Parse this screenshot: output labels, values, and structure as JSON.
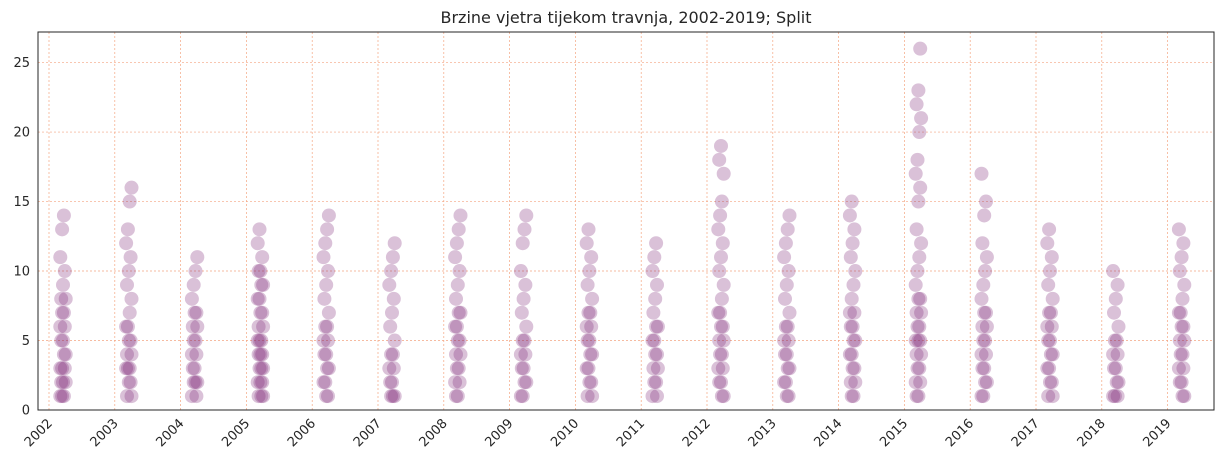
{
  "chart_data": {
    "type": "scatter",
    "title": "Brzine vjetra tijekom travnja, 2002-2019; Split",
    "xlabel": "",
    "ylabel": "",
    "categories": [
      "2002",
      "2003",
      "2004",
      "2005",
      "2006",
      "2007",
      "2008",
      "2009",
      "2010",
      "2011",
      "2012",
      "2013",
      "2014",
      "2015",
      "2016",
      "2017",
      "2018",
      "2019"
    ],
    "yticks": [
      0,
      5,
      10,
      15,
      20,
      25
    ],
    "ylim": [
      0,
      27.2
    ],
    "grid": true,
    "marker_color": "#7b2173",
    "grid_color": "#f4a582",
    "years": [
      {
        "year": "2002",
        "values": [
          1,
          1,
          1,
          2,
          2,
          2,
          3,
          3,
          3,
          4,
          4,
          5,
          5,
          6,
          6,
          7,
          7,
          8,
          8,
          9,
          10,
          11,
          13,
          14
        ]
      },
      {
        "year": "2003",
        "values": [
          1,
          1,
          2,
          2,
          3,
          3,
          3,
          4,
          4,
          5,
          5,
          6,
          6,
          7,
          8,
          9,
          10,
          11,
          12,
          13,
          15,
          16
        ]
      },
      {
        "year": "2004",
        "values": [
          1,
          1,
          2,
          2,
          2,
          3,
          3,
          4,
          4,
          5,
          5,
          6,
          6,
          7,
          7,
          8,
          9,
          10,
          11
        ]
      },
      {
        "year": "2005",
        "values": [
          1,
          1,
          1,
          2,
          2,
          2,
          3,
          3,
          3,
          4,
          4,
          4,
          5,
          5,
          5,
          6,
          6,
          7,
          7,
          8,
          8,
          9,
          9,
          10,
          10,
          11,
          12,
          13
        ]
      },
      {
        "year": "2006",
        "values": [
          1,
          1,
          2,
          2,
          3,
          3,
          4,
          4,
          5,
          5,
          6,
          6,
          7,
          8,
          9,
          10,
          11,
          12,
          13,
          14
        ]
      },
      {
        "year": "2007",
        "values": [
          1,
          1,
          1,
          2,
          2,
          3,
          3,
          4,
          4,
          5,
          6,
          7,
          8,
          9,
          10,
          11,
          12
        ]
      },
      {
        "year": "2008",
        "values": [
          1,
          1,
          2,
          2,
          3,
          3,
          4,
          4,
          5,
          5,
          6,
          6,
          7,
          7,
          8,
          9,
          10,
          11,
          12,
          13,
          14
        ]
      },
      {
        "year": "2009",
        "values": [
          1,
          1,
          2,
          2,
          3,
          3,
          4,
          4,
          5,
          5,
          6,
          7,
          8,
          9,
          10,
          12,
          13,
          14
        ]
      },
      {
        "year": "2010",
        "values": [
          1,
          1,
          2,
          2,
          3,
          3,
          4,
          4,
          5,
          5,
          6,
          6,
          7,
          7,
          8,
          9,
          10,
          11,
          12,
          13
        ]
      },
      {
        "year": "2011",
        "values": [
          1,
          1,
          2,
          2,
          3,
          3,
          4,
          4,
          5,
          5,
          6,
          6,
          7,
          8,
          9,
          10,
          11,
          12
        ]
      },
      {
        "year": "2012",
        "values": [
          1,
          1,
          2,
          2,
          3,
          3,
          4,
          4,
          5,
          5,
          6,
          6,
          7,
          7,
          8,
          9,
          10,
          11,
          12,
          13,
          14,
          15,
          17,
          18,
          19
        ]
      },
      {
        "year": "2013",
        "values": [
          1,
          1,
          2,
          2,
          3,
          3,
          4,
          4,
          5,
          5,
          6,
          6,
          7,
          8,
          9,
          10,
          11,
          12,
          13,
          14
        ]
      },
      {
        "year": "2014",
        "values": [
          1,
          1,
          2,
          2,
          3,
          3,
          4,
          4,
          5,
          5,
          6,
          6,
          7,
          7,
          8,
          9,
          10,
          11,
          12,
          13,
          14,
          15
        ]
      },
      {
        "year": "2015",
        "values": [
          1,
          1,
          2,
          2,
          3,
          3,
          4,
          4,
          5,
          5,
          5,
          6,
          6,
          7,
          7,
          8,
          8,
          9,
          10,
          11,
          12,
          13,
          15,
          16,
          17,
          18,
          20,
          21,
          22,
          23,
          26
        ]
      },
      {
        "year": "2016",
        "values": [
          1,
          1,
          2,
          2,
          3,
          3,
          4,
          4,
          5,
          5,
          6,
          6,
          7,
          7,
          8,
          9,
          10,
          11,
          12,
          14,
          15,
          17
        ]
      },
      {
        "year": "2017",
        "values": [
          1,
          1,
          2,
          2,
          3,
          3,
          4,
          4,
          5,
          5,
          6,
          6,
          7,
          7,
          8,
          9,
          10,
          11,
          12,
          13
        ]
      },
      {
        "year": "2018",
        "values": [
          1,
          1,
          1,
          2,
          2,
          3,
          3,
          4,
          4,
          5,
          5,
          6,
          7,
          8,
          9,
          10
        ]
      },
      {
        "year": "2019",
        "values": [
          1,
          1,
          2,
          2,
          3,
          3,
          4,
          4,
          5,
          5,
          6,
          6,
          7,
          7,
          8,
          9,
          10,
          11,
          12,
          13
        ]
      }
    ]
  }
}
